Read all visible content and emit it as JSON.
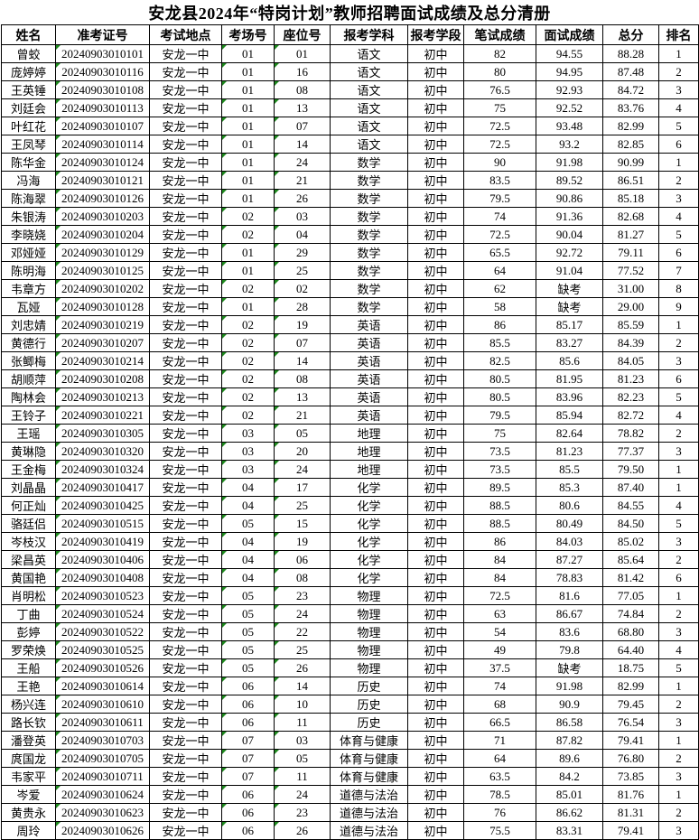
{
  "title": "安龙县2024年“特岗计划”教师招聘面试成绩及总分清册",
  "absent_label": "缺考",
  "colors": {
    "background": "#ffffff",
    "border": "#000000",
    "text": "#000000",
    "text_error_triangle_green": "#1e8a1e"
  },
  "table": {
    "columns": [
      "姓名",
      "准考证号",
      "考试地点",
      "考场号",
      "座位号",
      "报考学科",
      "报考学段",
      "笔试成绩",
      "面试成绩",
      "总分",
      "排名"
    ],
    "rows": [
      [
        "曾蛟",
        "20240903010101",
        "安龙一中",
        "01",
        "01",
        "语文",
        "初中",
        "82",
        "94.55",
        "88.28",
        "1"
      ],
      [
        "庞婷婷",
        "20240903010116",
        "安龙一中",
        "01",
        "16",
        "语文",
        "初中",
        "80",
        "94.95",
        "87.48",
        "2"
      ],
      [
        "王英锤",
        "20240903010108",
        "安龙一中",
        "01",
        "08",
        "语文",
        "初中",
        "76.5",
        "92.93",
        "84.72",
        "3"
      ],
      [
        "刘廷会",
        "20240903010113",
        "安龙一中",
        "01",
        "13",
        "语文",
        "初中",
        "75",
        "92.52",
        "83.76",
        "4"
      ],
      [
        "叶红花",
        "20240903010107",
        "安龙一中",
        "01",
        "07",
        "语文",
        "初中",
        "72.5",
        "93.48",
        "82.99",
        "5"
      ],
      [
        "王凤琴",
        "20240903010114",
        "安龙一中",
        "01",
        "14",
        "语文",
        "初中",
        "72.5",
        "93.2",
        "82.85",
        "6"
      ],
      [
        "陈华金",
        "20240903010124",
        "安龙一中",
        "01",
        "24",
        "数学",
        "初中",
        "90",
        "91.98",
        "90.99",
        "1"
      ],
      [
        "冯海",
        "20240903010121",
        "安龙一中",
        "01",
        "21",
        "数学",
        "初中",
        "83.5",
        "89.52",
        "86.51",
        "2"
      ],
      [
        "陈海翠",
        "20240903010126",
        "安龙一中",
        "01",
        "26",
        "数学",
        "初中",
        "79.5",
        "90.86",
        "85.18",
        "3"
      ],
      [
        "朱银涛",
        "20240903010203",
        "安龙一中",
        "02",
        "03",
        "数学",
        "初中",
        "74",
        "91.36",
        "82.68",
        "4"
      ],
      [
        "李晓娆",
        "20240903010204",
        "安龙一中",
        "02",
        "04",
        "数学",
        "初中",
        "72.5",
        "90.04",
        "81.27",
        "5"
      ],
      [
        "邓娅娅",
        "20240903010129",
        "安龙一中",
        "01",
        "29",
        "数学",
        "初中",
        "65.5",
        "92.72",
        "79.11",
        "6"
      ],
      [
        "陈明海",
        "20240903010125",
        "安龙一中",
        "01",
        "25",
        "数学",
        "初中",
        "64",
        "91.04",
        "77.52",
        "7"
      ],
      [
        "韦章方",
        "20240903010202",
        "安龙一中",
        "02",
        "02",
        "数学",
        "初中",
        "62",
        "缺考",
        "31.00",
        "8"
      ],
      [
        "瓦娅",
        "20240903010128",
        "安龙一中",
        "01",
        "28",
        "数学",
        "初中",
        "58",
        "缺考",
        "29.00",
        "9"
      ],
      [
        "刘忠婧",
        "20240903010219",
        "安龙一中",
        "02",
        "19",
        "英语",
        "初中",
        "86",
        "85.17",
        "85.59",
        "1"
      ],
      [
        "黄德行",
        "20240903010207",
        "安龙一中",
        "02",
        "07",
        "英语",
        "初中",
        "85.5",
        "83.27",
        "84.39",
        "2"
      ],
      [
        "张鲫梅",
        "20240903010214",
        "安龙一中",
        "02",
        "14",
        "英语",
        "初中",
        "82.5",
        "85.6",
        "84.05",
        "3"
      ],
      [
        "胡顺萍",
        "20240903010208",
        "安龙一中",
        "02",
        "08",
        "英语",
        "初中",
        "80.5",
        "81.95",
        "81.23",
        "6"
      ],
      [
        "陶林会",
        "20240903010213",
        "安龙一中",
        "02",
        "13",
        "英语",
        "初中",
        "80.5",
        "83.96",
        "82.23",
        "5"
      ],
      [
        "王铃子",
        "20240903010221",
        "安龙一中",
        "02",
        "21",
        "英语",
        "初中",
        "79.5",
        "85.94",
        "82.72",
        "4"
      ],
      [
        "王瑶",
        "20240903010305",
        "安龙一中",
        "03",
        "05",
        "地理",
        "初中",
        "75",
        "82.64",
        "78.82",
        "2"
      ],
      [
        "黄琳隐",
        "20240903010320",
        "安龙一中",
        "03",
        "20",
        "地理",
        "初中",
        "73.5",
        "81.23",
        "77.37",
        "3"
      ],
      [
        "王金梅",
        "20240903010324",
        "安龙一中",
        "03",
        "24",
        "地理",
        "初中",
        "73.5",
        "85.5",
        "79.50",
        "1"
      ],
      [
        "刘晶晶",
        "20240903010417",
        "安龙一中",
        "04",
        "17",
        "化学",
        "初中",
        "89.5",
        "85.3",
        "87.40",
        "1"
      ],
      [
        "何正灿",
        "20240903010425",
        "安龙一中",
        "04",
        "25",
        "化学",
        "初中",
        "88.5",
        "80.6",
        "84.55",
        "4"
      ],
      [
        "骆廷侣",
        "20240903010515",
        "安龙一中",
        "05",
        "15",
        "化学",
        "初中",
        "88.5",
        "80.49",
        "84.50",
        "5"
      ],
      [
        "岑枝汉",
        "20240903010419",
        "安龙一中",
        "04",
        "19",
        "化学",
        "初中",
        "86",
        "84.03",
        "85.02",
        "3"
      ],
      [
        "梁昌英",
        "20240903010406",
        "安龙一中",
        "04",
        "06",
        "化学",
        "初中",
        "84",
        "87.27",
        "85.64",
        "2"
      ],
      [
        "黄国艳",
        "20240903010408",
        "安龙一中",
        "04",
        "08",
        "化学",
        "初中",
        "84",
        "78.83",
        "81.42",
        "6"
      ],
      [
        "肖明松",
        "20240903010523",
        "安龙一中",
        "05",
        "23",
        "物理",
        "初中",
        "72.5",
        "81.6",
        "77.05",
        "1"
      ],
      [
        "丁曲",
        "20240903010524",
        "安龙一中",
        "05",
        "24",
        "物理",
        "初中",
        "63",
        "86.67",
        "74.84",
        "2"
      ],
      [
        "彭婷",
        "20240903010522",
        "安龙一中",
        "05",
        "22",
        "物理",
        "初中",
        "54",
        "83.6",
        "68.80",
        "3"
      ],
      [
        "罗荣焕",
        "20240903010525",
        "安龙一中",
        "05",
        "25",
        "物理",
        "初中",
        "49",
        "79.8",
        "64.40",
        "4"
      ],
      [
        "王船",
        "20240903010526",
        "安龙一中",
        "05",
        "26",
        "物理",
        "初中",
        "37.5",
        "缺考",
        "18.75",
        "5"
      ],
      [
        "王艳",
        "20240903010614",
        "安龙一中",
        "06",
        "14",
        "历史",
        "初中",
        "74",
        "91.98",
        "82.99",
        "1"
      ],
      [
        "杨兴连",
        "20240903010610",
        "安龙一中",
        "06",
        "10",
        "历史",
        "初中",
        "68",
        "90.9",
        "79.45",
        "2"
      ],
      [
        "路长钦",
        "20240903010611",
        "安龙一中",
        "06",
        "11",
        "历史",
        "初中",
        "66.5",
        "86.58",
        "76.54",
        "3"
      ],
      [
        "潘登英",
        "20240903010703",
        "安龙一中",
        "07",
        "03",
        "体育与健康",
        "初中",
        "71",
        "87.82",
        "79.41",
        "1"
      ],
      [
        "庹国龙",
        "20240903010705",
        "安龙一中",
        "07",
        "05",
        "体育与健康",
        "初中",
        "64",
        "89.6",
        "76.80",
        "2"
      ],
      [
        "韦家平",
        "20240903010711",
        "安龙一中",
        "07",
        "11",
        "体育与健康",
        "初中",
        "63.5",
        "84.2",
        "73.85",
        "3"
      ],
      [
        "岑爱",
        "20240903010624",
        "安龙一中",
        "06",
        "24",
        "道德与法治",
        "初中",
        "78.5",
        "85.01",
        "81.76",
        "1"
      ],
      [
        "黄贵永",
        "20240903010623",
        "安龙一中",
        "06",
        "23",
        "道德与法治",
        "初中",
        "76",
        "86.62",
        "81.31",
        "2"
      ],
      [
        "周玲",
        "20240903010626",
        "安龙一中",
        "06",
        "26",
        "道德与法治",
        "初中",
        "75.5",
        "83.31",
        "79.41",
        "3"
      ]
    ],
    "text_flag_columns_note": "green number-stored-as-text triangles on 准考证号/考场号/座位号"
  }
}
